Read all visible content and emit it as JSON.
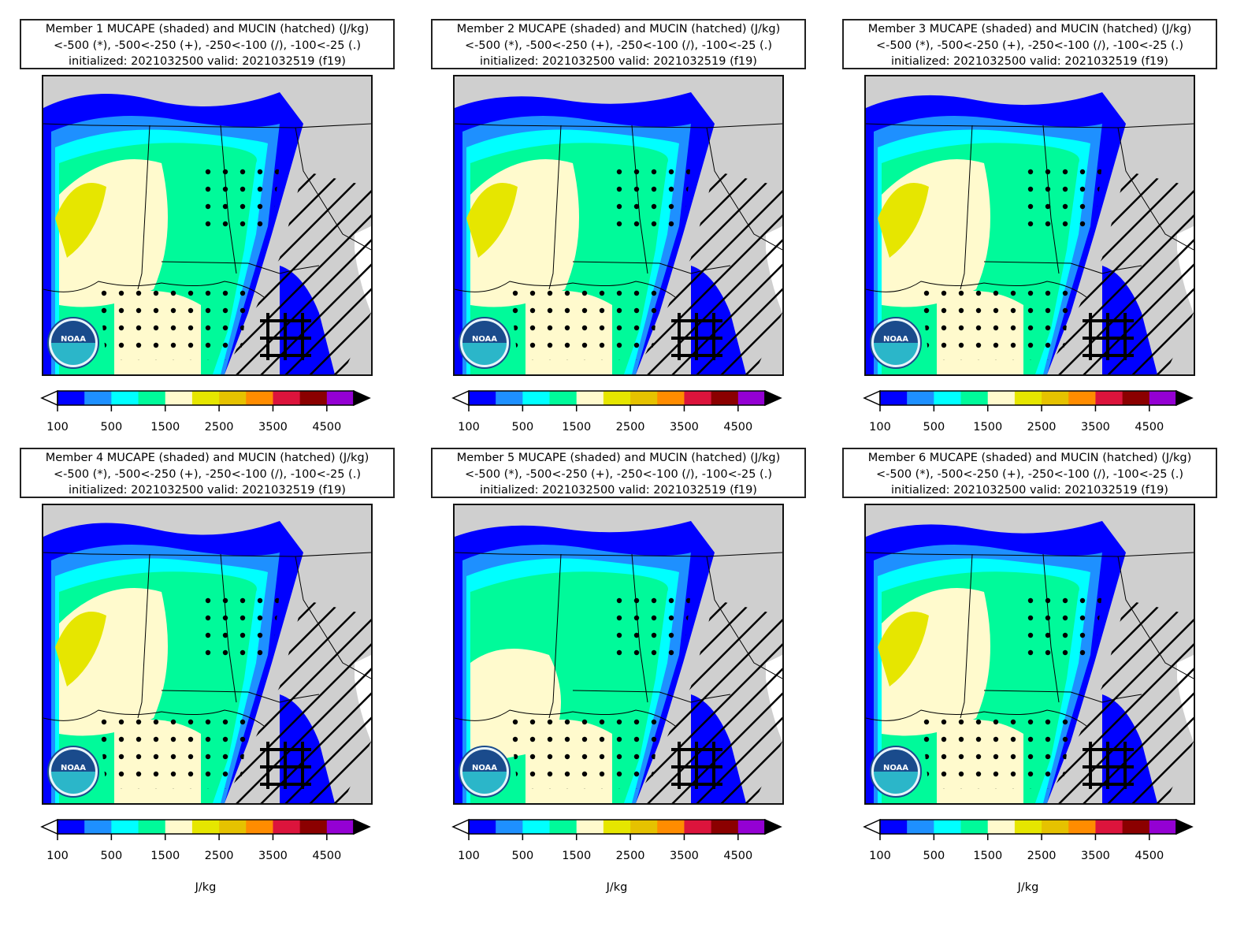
{
  "panels": [
    {
      "title_line1": "Member 1 MUCAPE (shaded) and MUCIN (hatched) (J/kg)",
      "title_line2": "<-500 (*), -500<-250 (+), -250<-100 (/), -100<-25 (.)",
      "title_line3": "initialized: 2021032500 valid: 2021032519 (f19)"
    },
    {
      "title_line1": "Member 2 MUCAPE (shaded) and MUCIN (hatched) (J/kg)",
      "title_line2": "<-500 (*), -500<-250 (+), -250<-100 (/), -100<-25 (.)",
      "title_line3": "initialized: 2021032500 valid: 2021032519 (f19)"
    },
    {
      "title_line1": "Member 3 MUCAPE (shaded) and MUCIN (hatched) (J/kg)",
      "title_line2": "<-500 (*), -500<-250 (+), -250<-100 (/), -100<-25 (.)",
      "title_line3": "initialized: 2021032500 valid: 2021032519 (f19)"
    },
    {
      "title_line1": "Member 4 MUCAPE (shaded) and MUCIN (hatched) (J/kg)",
      "title_line2": "<-500 (*), -500<-250 (+), -250<-100 (/), -100<-25 (.)",
      "title_line3": "initialized: 2021032500 valid: 2021032519 (f19)"
    },
    {
      "title_line1": "Member 5 MUCAPE (shaded) and MUCIN (hatched) (J/kg)",
      "title_line2": "<-500 (*), -500<-250 (+), -250<-100 (/), -100<-25 (.)",
      "title_line3": "initialized: 2021032500 valid: 2021032519 (f19)"
    },
    {
      "title_line1": "Member 6 MUCAPE (shaded) and MUCIN (hatched) (J/kg)",
      "title_line2": "<-500 (*), -500<-250 (+), -250<-100 (/), -100<-25 (.)",
      "title_line3": "initialized: 2021032500 valid: 2021032519 (f19)"
    }
  ],
  "colorbar": {
    "colors": [
      "#0000ff",
      "#1e90ff",
      "#00ffff",
      "#00fa9a",
      "#fffacd",
      "#e6e600",
      "#e6c200",
      "#ff8c00",
      "#dc143c",
      "#8b0000",
      "#9400d3"
    ],
    "under_color": "#ffffff",
    "over_color": "#000000",
    "tick_labels": [
      "100",
      "500",
      "1500",
      "2500",
      "3500",
      "4500"
    ],
    "unit": "J/kg"
  },
  "logo_text": "NOAA",
  "map_colors": {
    "land": "#cfcfcf",
    "water": "#ffffff",
    "border": "#000000"
  }
}
